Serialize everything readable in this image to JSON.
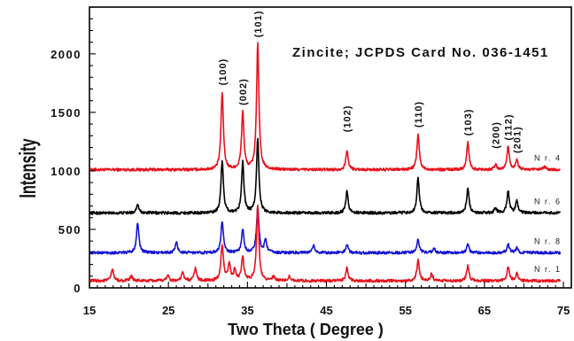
{
  "chart_data": {
    "type": "line",
    "xlabel": "Two Theta ( Degree )",
    "ylabel": "Intensity",
    "xlim": [
      15,
      76
    ],
    "ylim": [
      0,
      2400
    ],
    "xticks": [
      15,
      25,
      35,
      45,
      55,
      65,
      75
    ],
    "yticks": [
      0,
      500,
      1000,
      1500,
      2000
    ],
    "grid": false,
    "annotation": "Zincite; JCPDS Card No. 036-1451",
    "peak_labels": [
      {
        "text": "(100)",
        "x": 31.8,
        "y": 1670
      },
      {
        "text": "(002)",
        "x": 34.4,
        "y": 1500
      },
      {
        "text": "(101)",
        "x": 36.3,
        "y": 2080
      },
      {
        "text": "(102)",
        "x": 47.6,
        "y": 1270
      },
      {
        "text": "(110)",
        "x": 56.6,
        "y": 1310
      },
      {
        "text": "(103)",
        "x": 62.9,
        "y": 1240
      },
      {
        "text": "(200)",
        "x": 66.4,
        "y": 1130
      },
      {
        "text": "(112)",
        "x": 68.0,
        "y": 1200
      },
      {
        "text": "(201)",
        "x": 69.1,
        "y": 1090
      }
    ],
    "series": [
      {
        "name": "N r. 4",
        "color": "#e8101a",
        "baseline": 1010,
        "peaks": [
          [
            31.8,
            660
          ],
          [
            34.4,
            490
          ],
          [
            36.3,
            1070
          ],
          [
            47.6,
            160
          ],
          [
            56.6,
            300
          ],
          [
            62.9,
            230
          ],
          [
            66.4,
            40
          ],
          [
            68.0,
            200
          ],
          [
            69.1,
            80
          ],
          [
            72.6,
            25
          ]
        ]
      },
      {
        "name": "N r. 6",
        "color": "#000000",
        "baseline": 640,
        "peaks": [
          [
            21.1,
            80
          ],
          [
            31.8,
            450
          ],
          [
            34.4,
            430
          ],
          [
            36.3,
            640
          ],
          [
            47.6,
            180
          ],
          [
            56.6,
            300
          ],
          [
            62.9,
            210
          ],
          [
            66.4,
            40
          ],
          [
            68.0,
            190
          ],
          [
            69.1,
            100
          ]
        ]
      },
      {
        "name": "N r. 8",
        "color": "#1414d4",
        "baseline": 300,
        "peaks": [
          [
            21.1,
            260
          ],
          [
            26.0,
            90
          ],
          [
            31.8,
            270
          ],
          [
            34.4,
            200
          ],
          [
            36.3,
            390
          ],
          [
            37.3,
            110
          ],
          [
            43.4,
            60
          ],
          [
            47.6,
            70
          ],
          [
            56.6,
            110
          ],
          [
            58.6,
            40
          ],
          [
            62.9,
            70
          ],
          [
            68.0,
            70
          ],
          [
            69.1,
            40
          ]
        ]
      },
      {
        "name": "N r. 1",
        "color": "#e8101a",
        "baseline": 60,
        "peaks": [
          [
            17.9,
            100
          ],
          [
            20.3,
            40
          ],
          [
            24.9,
            50
          ],
          [
            26.8,
            70
          ],
          [
            28.4,
            110
          ],
          [
            31.8,
            310
          ],
          [
            32.7,
            140
          ],
          [
            33.4,
            90
          ],
          [
            34.4,
            200
          ],
          [
            36.3,
            640
          ],
          [
            38.3,
            30
          ],
          [
            40.3,
            40
          ],
          [
            47.6,
            110
          ],
          [
            56.6,
            180
          ],
          [
            58.3,
            60
          ],
          [
            62.9,
            130
          ],
          [
            68.0,
            120
          ],
          [
            69.1,
            60
          ]
        ]
      }
    ]
  }
}
